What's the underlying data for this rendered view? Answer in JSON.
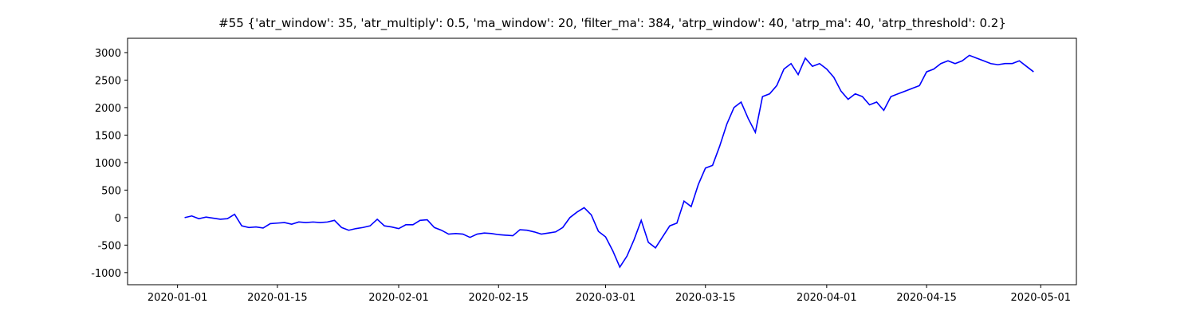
{
  "chart_data": {
    "type": "line",
    "title": "#55 {'atr_window': 35, 'atr_multiply': 0.5, 'ma_window': 20, 'filter_ma': 384, 'atrp_window': 40, 'atrp_ma': 40, 'atrp_threshold': 0.2}",
    "x": [
      "2020-01-02",
      "2020-01-03",
      "2020-01-04",
      "2020-01-05",
      "2020-01-06",
      "2020-01-07",
      "2020-01-08",
      "2020-01-09",
      "2020-01-10",
      "2020-01-11",
      "2020-01-12",
      "2020-01-13",
      "2020-01-14",
      "2020-01-15",
      "2020-01-16",
      "2020-01-17",
      "2020-01-18",
      "2020-01-19",
      "2020-01-20",
      "2020-01-21",
      "2020-01-22",
      "2020-01-23",
      "2020-01-24",
      "2020-01-25",
      "2020-01-26",
      "2020-01-27",
      "2020-01-28",
      "2020-01-29",
      "2020-01-30",
      "2020-01-31",
      "2020-02-01",
      "2020-02-02",
      "2020-02-03",
      "2020-02-04",
      "2020-02-05",
      "2020-02-06",
      "2020-02-07",
      "2020-02-08",
      "2020-02-09",
      "2020-02-10",
      "2020-02-11",
      "2020-02-12",
      "2020-02-13",
      "2020-02-14",
      "2020-02-15",
      "2020-02-16",
      "2020-02-17",
      "2020-02-18",
      "2020-02-19",
      "2020-02-20",
      "2020-02-21",
      "2020-02-22",
      "2020-02-23",
      "2020-02-24",
      "2020-02-25",
      "2020-02-26",
      "2020-02-27",
      "2020-02-28",
      "2020-02-29",
      "2020-03-01",
      "2020-03-02",
      "2020-03-03",
      "2020-03-04",
      "2020-03-05",
      "2020-03-06",
      "2020-03-07",
      "2020-03-08",
      "2020-03-09",
      "2020-03-10",
      "2020-03-11",
      "2020-03-12",
      "2020-03-13",
      "2020-03-14",
      "2020-03-15",
      "2020-03-16",
      "2020-03-17",
      "2020-03-18",
      "2020-03-19",
      "2020-03-20",
      "2020-03-21",
      "2020-03-22",
      "2020-03-23",
      "2020-03-24",
      "2020-03-25",
      "2020-03-26",
      "2020-03-27",
      "2020-03-28",
      "2020-03-29",
      "2020-03-30",
      "2020-03-31",
      "2020-04-01",
      "2020-04-02",
      "2020-04-03",
      "2020-04-04",
      "2020-04-05",
      "2020-04-06",
      "2020-04-07",
      "2020-04-08",
      "2020-04-09",
      "2020-04-10",
      "2020-04-11",
      "2020-04-12",
      "2020-04-13",
      "2020-04-14",
      "2020-04-15",
      "2020-04-16",
      "2020-04-17",
      "2020-04-18",
      "2020-04-19",
      "2020-04-20",
      "2020-04-21",
      "2020-04-22",
      "2020-04-23",
      "2020-04-24",
      "2020-04-25",
      "2020-04-26",
      "2020-04-27",
      "2020-04-28",
      "2020-04-29",
      "2020-04-30"
    ],
    "series": [
      {
        "color": "#0000ff",
        "values": [
          0,
          30,
          -20,
          10,
          -10,
          -30,
          -20,
          60,
          -150,
          -180,
          -170,
          -190,
          -110,
          -100,
          -90,
          -120,
          -80,
          -90,
          -80,
          -90,
          -80,
          -50,
          -180,
          -230,
          -200,
          -180,
          -150,
          -30,
          -150,
          -170,
          -200,
          -130,
          -130,
          -50,
          -40,
          -180,
          -230,
          -300,
          -290,
          -300,
          -360,
          -300,
          -280,
          -290,
          -310,
          -320,
          -330,
          -220,
          -230,
          -260,
          -300,
          -280,
          -260,
          -180,
          0,
          100,
          180,
          50,
          -250,
          -350,
          -600,
          -900,
          -700,
          -400,
          -50,
          -450,
          -550,
          -350,
          -150,
          -100,
          300,
          200,
          600,
          900,
          950,
          1300,
          1700,
          2000,
          2100,
          1800,
          1550,
          2200,
          2250,
          2400,
          2700,
          2800,
          2600,
          2900,
          2750,
          2800,
          2700,
          2550,
          2300,
          2150,
          2250,
          2200,
          2050,
          2100,
          1950,
          2200,
          2250,
          2300,
          2350,
          2400,
          2650,
          2700,
          2800,
          2850,
          2800,
          2850,
          2950,
          2900,
          2850,
          2800,
          2780,
          2800,
          2800,
          2850,
          2750,
          2650
        ]
      }
    ],
    "xlim": [
      "2019-12-25",
      "2020-05-06"
    ],
    "xticks": [
      "2020-01-01",
      "2020-01-15",
      "2020-02-01",
      "2020-02-15",
      "2020-03-01",
      "2020-03-15",
      "2020-04-01",
      "2020-04-15",
      "2020-05-01"
    ],
    "ylim": [
      -1220,
      3260
    ],
    "yticks": [
      -1000,
      -500,
      0,
      500,
      1000,
      1500,
      2000,
      2500,
      3000
    ]
  }
}
